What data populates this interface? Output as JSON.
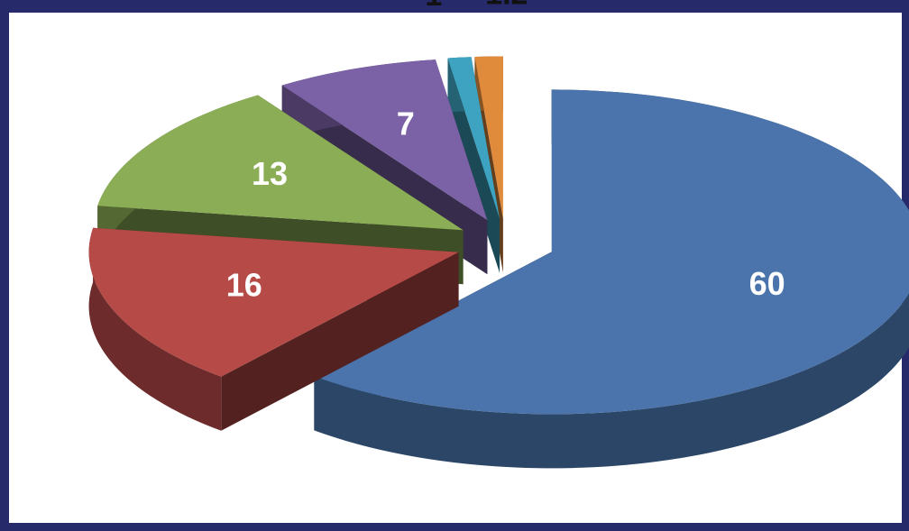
{
  "chart_data": {
    "type": "pie3d",
    "values": [
      60,
      16,
      13,
      7,
      1,
      1.2
    ],
    "colors": [
      "#4a74ab",
      "#b64a47",
      "#8aad55",
      "#7b61a6",
      "#3ea3c0",
      "#e08a3b"
    ]
  }
}
